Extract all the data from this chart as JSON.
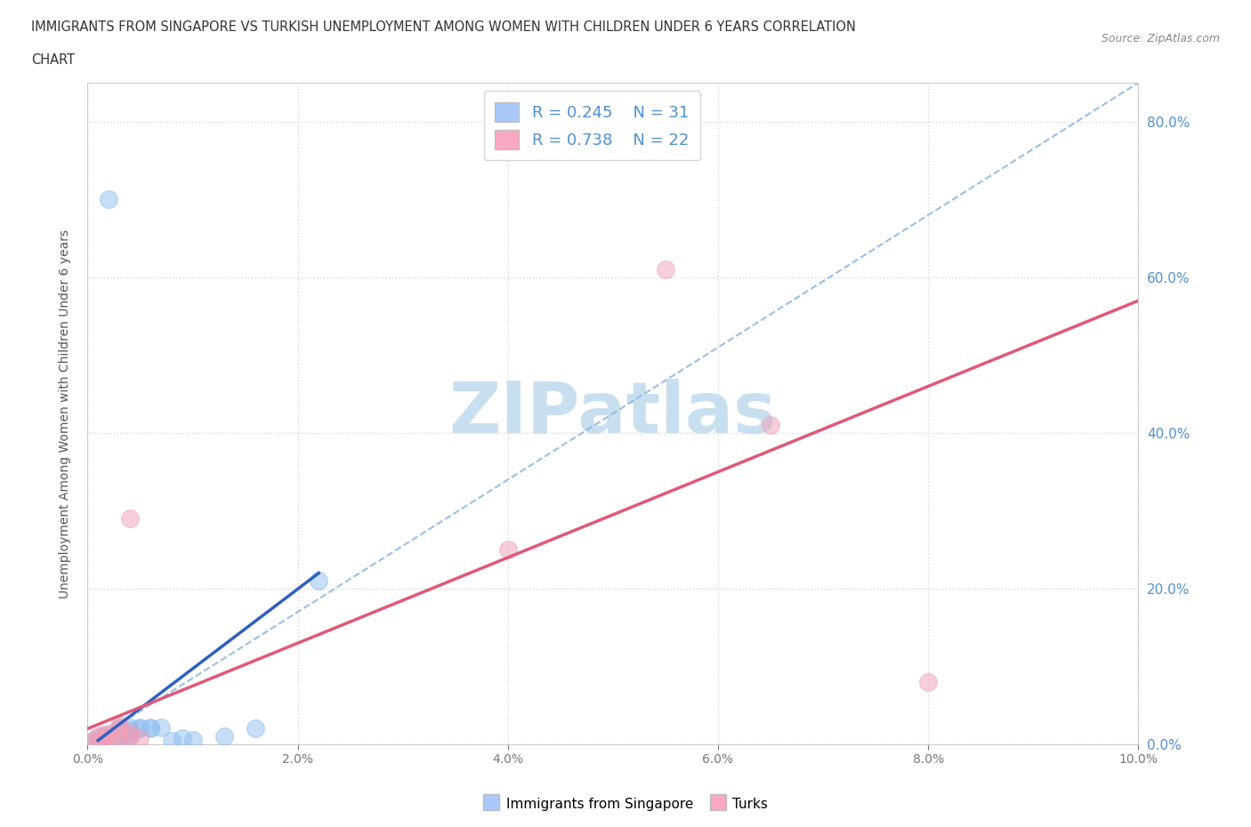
{
  "title_line1": "IMMIGRANTS FROM SINGAPORE VS TURKISH UNEMPLOYMENT AMONG WOMEN WITH CHILDREN UNDER 6 YEARS CORRELATION",
  "title_line2": "CHART",
  "source": "Source: ZipAtlas.com",
  "ylabel": "Unemployment Among Women with Children Under 6 years",
  "xlim": [
    0.0,
    0.1
  ],
  "ylim": [
    0.0,
    0.85
  ],
  "legend_entries": [
    {
      "color": "#a8c8f8",
      "R": 0.245,
      "N": 31
    },
    {
      "color": "#f8a8c0",
      "R": 0.738,
      "N": 22
    }
  ],
  "legend_labels": [
    "Immigrants from Singapore",
    "Turks"
  ],
  "singapore_color": "#90bef0",
  "turk_color": "#f0a0b8",
  "singapore_line_color": "#3060c0",
  "turk_line_color": "#e05878",
  "diagonal_color": "#90b8e0",
  "watermark_text": "ZIPatlas",
  "watermark_color": "#c8dff0",
  "background_color": "#ffffff",
  "grid_color": "#d8d8d8",
  "tick_label_color": "#5090d0",
  "singapore_dots": [
    [
      0.0005,
      0.005
    ],
    [
      0.001,
      0.004
    ],
    [
      0.001,
      0.006
    ],
    [
      0.001,
      0.008
    ],
    [
      0.0015,
      0.005
    ],
    [
      0.0015,
      0.01
    ],
    [
      0.002,
      0.006
    ],
    [
      0.002,
      0.01
    ],
    [
      0.002,
      0.012
    ],
    [
      0.002,
      0.7
    ],
    [
      0.003,
      0.003
    ],
    [
      0.003,
      0.006
    ],
    [
      0.003,
      0.01
    ],
    [
      0.003,
      0.012
    ],
    [
      0.003,
      0.018
    ],
    [
      0.003,
      0.022
    ],
    [
      0.004,
      0.01
    ],
    [
      0.004,
      0.014
    ],
    [
      0.004,
      0.018
    ],
    [
      0.004,
      0.022
    ],
    [
      0.005,
      0.02
    ],
    [
      0.005,
      0.022
    ],
    [
      0.006,
      0.02
    ],
    [
      0.006,
      0.022
    ],
    [
      0.007,
      0.022
    ],
    [
      0.008,
      0.005
    ],
    [
      0.009,
      0.008
    ],
    [
      0.01,
      0.006
    ],
    [
      0.013,
      0.01
    ],
    [
      0.016,
      0.02
    ],
    [
      0.022,
      0.21
    ]
  ],
  "turk_dots": [
    [
      0.0005,
      0.003
    ],
    [
      0.001,
      0.002
    ],
    [
      0.001,
      0.005
    ],
    [
      0.001,
      0.01
    ],
    [
      0.0015,
      0.004
    ],
    [
      0.0015,
      0.008
    ],
    [
      0.0015,
      0.012
    ],
    [
      0.002,
      0.006
    ],
    [
      0.002,
      0.01
    ],
    [
      0.002,
      0.014
    ],
    [
      0.003,
      0.008
    ],
    [
      0.003,
      0.012
    ],
    [
      0.003,
      0.02
    ],
    [
      0.003,
      0.025
    ],
    [
      0.004,
      0.01
    ],
    [
      0.004,
      0.015
    ],
    [
      0.005,
      0.008
    ],
    [
      0.004,
      0.29
    ],
    [
      0.04,
      0.25
    ],
    [
      0.055,
      0.61
    ],
    [
      0.065,
      0.41
    ],
    [
      0.08,
      0.08
    ]
  ],
  "sg_line_x": [
    0.001,
    0.022
  ],
  "sg_line_y": [
    0.005,
    0.22
  ],
  "tk_line_x": [
    0.0,
    0.1
  ],
  "tk_line_y": [
    0.02,
    0.57
  ]
}
